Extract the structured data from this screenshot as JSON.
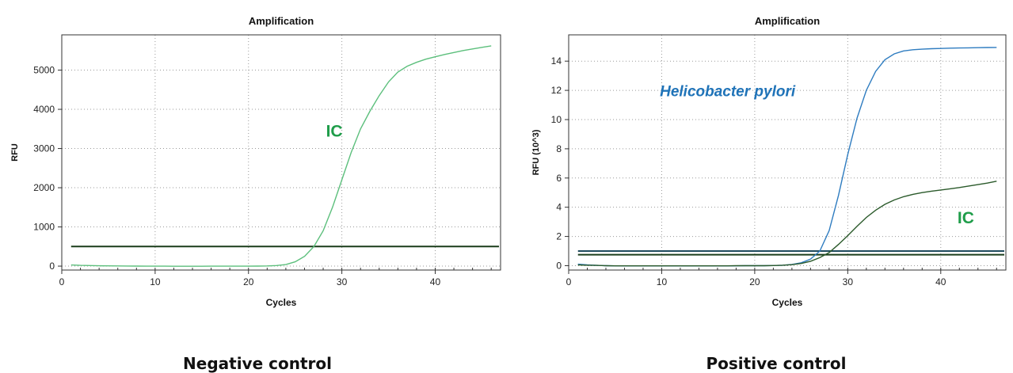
{
  "chart_data": [
    {
      "type": "line",
      "title": "Amplification",
      "xlabel": "Cycles",
      "ylabel": "RFU",
      "xlim": [
        0,
        47
      ],
      "ylim": [
        -100,
        5900
      ],
      "xticks": [
        0,
        10,
        20,
        30,
        40
      ],
      "yticks": [
        0,
        1000,
        2000,
        3000,
        4000,
        5000
      ],
      "grid": true,
      "caption": "Negative control",
      "series": [
        {
          "name": "IC",
          "color": "#5cbf7c",
          "x": [
            1,
            2,
            3,
            4,
            5,
            6,
            7,
            8,
            9,
            10,
            11,
            12,
            13,
            14,
            15,
            16,
            17,
            18,
            19,
            20,
            21,
            22,
            23,
            24,
            25,
            26,
            27,
            28,
            29,
            30,
            31,
            32,
            33,
            34,
            35,
            36,
            37,
            38,
            39,
            40,
            41,
            42,
            43,
            44,
            45,
            46
          ],
          "y": [
            30,
            20,
            15,
            10,
            8,
            5,
            3,
            2,
            0,
            0,
            -2,
            -3,
            -3,
            -3,
            -3,
            -2,
            -2,
            -1,
            0,
            0,
            2,
            5,
            15,
            40,
            110,
            250,
            500,
            900,
            1500,
            2200,
            2900,
            3500,
            3950,
            4350,
            4700,
            4950,
            5100,
            5200,
            5280,
            5340,
            5400,
            5450,
            5500,
            5540,
            5580,
            5620
          ]
        }
      ],
      "thresholds": [
        {
          "y": 500,
          "color": "#1a3d1a"
        }
      ],
      "annotations": [
        {
          "text": "IC",
          "x": 28.3,
          "y": 3300,
          "color": "#1f9d4a"
        }
      ]
    },
    {
      "type": "line",
      "title": "Amplification",
      "xlabel": "Cycles",
      "ylabel": "RFU (10^3)",
      "xlim": [
        0,
        47
      ],
      "ylim": [
        -0.3,
        15.8
      ],
      "xticks": [
        0,
        10,
        20,
        30,
        40
      ],
      "yticks": [
        0,
        2,
        4,
        6,
        8,
        10,
        12,
        14
      ],
      "grid": true,
      "caption": "Positive control",
      "series": [
        {
          "name": "Helicobacter pylori",
          "color": "#2e7cc0",
          "x": [
            1,
            2,
            3,
            4,
            5,
            6,
            7,
            8,
            9,
            10,
            11,
            12,
            13,
            14,
            15,
            16,
            17,
            18,
            19,
            20,
            21,
            22,
            23,
            24,
            25,
            26,
            27,
            28,
            29,
            30,
            31,
            32,
            33,
            34,
            35,
            36,
            37,
            38,
            39,
            40,
            41,
            42,
            43,
            44,
            45,
            46
          ],
          "y": [
            0.1,
            0.05,
            0.02,
            0,
            -0.01,
            -0.02,
            -0.02,
            -0.02,
            -0.02,
            -0.02,
            -0.02,
            -0.02,
            -0.02,
            -0.02,
            -0.02,
            -0.02,
            -0.02,
            -0.01,
            0,
            0,
            0,
            0.01,
            0.03,
            0.08,
            0.2,
            0.45,
            1,
            2.4,
            4.8,
            7.6,
            10.1,
            12,
            13.3,
            14.1,
            14.5,
            14.7,
            14.78,
            14.82,
            14.85,
            14.87,
            14.89,
            14.9,
            14.91,
            14.92,
            14.93,
            14.94
          ]
        },
        {
          "name": "IC",
          "color": "#2b5a2b",
          "x": [
            1,
            2,
            3,
            4,
            5,
            6,
            7,
            8,
            9,
            10,
            11,
            12,
            13,
            14,
            15,
            16,
            17,
            18,
            19,
            20,
            21,
            22,
            23,
            24,
            25,
            26,
            27,
            28,
            29,
            30,
            31,
            32,
            33,
            34,
            35,
            36,
            37,
            38,
            39,
            40,
            41,
            42,
            43,
            44,
            45,
            46
          ],
          "y": [
            0.05,
            0.03,
            0.02,
            0,
            -0.01,
            -0.01,
            -0.01,
            -0.01,
            -0.01,
            -0.01,
            -0.01,
            -0.01,
            -0.01,
            -0.01,
            -0.01,
            -0.01,
            -0.01,
            0,
            0,
            0,
            0,
            0.01,
            0.03,
            0.07,
            0.15,
            0.3,
            0.55,
            0.9,
            1.45,
            2.05,
            2.7,
            3.3,
            3.8,
            4.2,
            4.5,
            4.72,
            4.88,
            5.0,
            5.1,
            5.18,
            5.26,
            5.35,
            5.45,
            5.55,
            5.65,
            5.78
          ]
        }
      ],
      "thresholds": [
        {
          "y": 1.0,
          "color": "#1e4a5c"
        },
        {
          "y": 0.75,
          "color": "#1a3d1a"
        }
      ],
      "annotations": [
        {
          "text": "Helicobacter pylori",
          "x": 9.8,
          "y": 11.6,
          "color": "#1f73b8",
          "italic": true
        },
        {
          "text": "IC",
          "x": 41.8,
          "y": 2.9,
          "color": "#1f9d4a"
        }
      ]
    }
  ]
}
